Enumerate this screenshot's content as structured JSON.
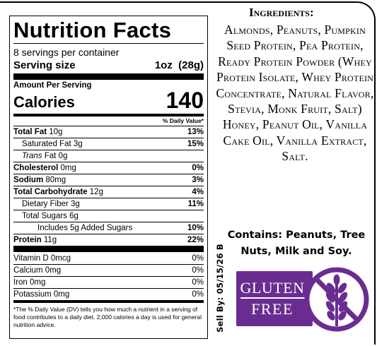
{
  "nutrition": {
    "title": "Nutrition Facts",
    "servings_per_container": "8 servings per container",
    "serving_size_label": "Serving size",
    "serving_size_value": "1oz  (28g)",
    "amount_per_serving": "Amount Per Serving",
    "calories_label": "Calories",
    "calories_value": "140",
    "dv_header": "% Daily Value*",
    "rows": [
      {
        "name": "Total Fat",
        "amount": "10g",
        "dv": "13%"
      },
      {
        "name": "Saturated Fat",
        "amount": "3g",
        "dv": "15%"
      },
      {
        "name": "Trans",
        "amount": "Fat 0g",
        "dv": ""
      },
      {
        "name": "Cholesterol",
        "amount": "0mg",
        "dv": "0%"
      },
      {
        "name": "Sodium",
        "amount": "80mg",
        "dv": "3%"
      },
      {
        "name": "Total Carbohydrate",
        "amount": "12g",
        "dv": "4%"
      },
      {
        "name": "Dietary Fiber",
        "amount": "3g",
        "dv": "11%"
      },
      {
        "name": "Total Sugars",
        "amount": "6g",
        "dv": ""
      },
      {
        "name": "Includes 5g Added Sugars",
        "amount": "",
        "dv": "10%"
      },
      {
        "name": "Protein",
        "amount": "11g",
        "dv": "22%"
      },
      {
        "name": "Vitamin D",
        "amount": "0mcg",
        "dv": "0%"
      },
      {
        "name": "Calcium",
        "amount": "0mg",
        "dv": "0%"
      },
      {
        "name": "Iron",
        "amount": "0mg",
        "dv": "0%"
      },
      {
        "name": "Potassium",
        "amount": "0mg",
        "dv": "0%"
      }
    ],
    "footnote": "*The % Daily Value (DV) tells you how much a nutrient in a serving of food contributes to a daily diet. 2,000 calories a day is used for general nutrition advice."
  },
  "ingredients": {
    "heading": "Ingredients:",
    "text": "Almonds, Peanuts, Pumpkin Seed Protein, Pea Protein, Ready Protein Powder (Whey Protein Isolate, Whey Protein Concentrate, Natural Flavor, Stevia, Monk Fruit, Salt) Honey, Peanut Oil, Vanilla Cake Oil, Vanilla Extract, Salt."
  },
  "allergens": "Contains: Peanuts, Tree Nuts, Milk and Soy.",
  "sell_by": "Sell By: 05/15/26 B",
  "badge": {
    "line1": "GLUTEN",
    "line2": "FREE",
    "color": "#6a2c91",
    "icon": "wheat-crossed-icon"
  }
}
